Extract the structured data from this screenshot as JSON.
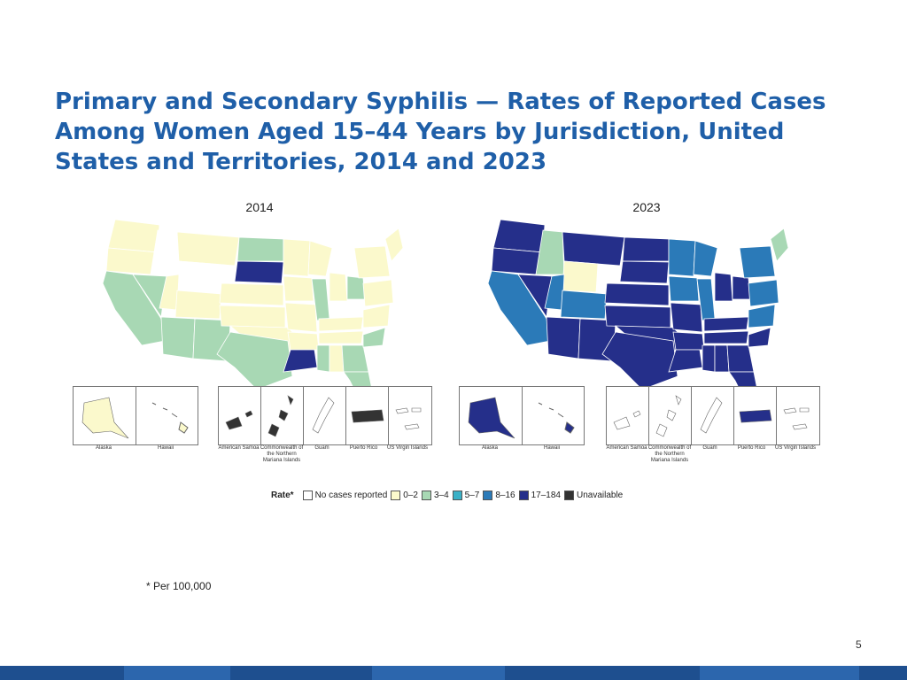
{
  "slide": {
    "title": "Primary and Secondary Syphilis — Rates of Reported Cases Among Women Aged 15–44 Years by Jurisdiction, United States and Territories, 2014 and 2023",
    "footnote": "* Per 100,000",
    "page_number": "5"
  },
  "maps": [
    {
      "year": "2014",
      "insets": [
        "Alaska",
        "Hawaii",
        "American Samoa",
        "Commonwealth of the Northern Mariana Islands",
        "Guam",
        "Puerto Rico",
        "US Virgin Islands"
      ]
    },
    {
      "year": "2023",
      "insets": [
        "Alaska",
        "Hawaii",
        "American Samoa",
        "Commonwealth of the Northern Mariana Islands",
        "Guam",
        "Puerto Rico",
        "US Virgin Islands"
      ]
    }
  ],
  "legend": {
    "title": "Rate*",
    "items": [
      {
        "label": "No cases reported",
        "color": "#ffffff"
      },
      {
        "label": "0–2",
        "color": "#fbf9cc"
      },
      {
        "label": "3–4",
        "color": "#a8d8b4"
      },
      {
        "label": "5–7",
        "color": "#3ab0c6"
      },
      {
        "label": "8–16",
        "color": "#2b7ab8"
      },
      {
        "label": "17–184",
        "color": "#252f8a"
      },
      {
        "label": "Unavailable",
        "color": "#333333"
      }
    ]
  },
  "colors": {
    "title": "#1f5fa8",
    "bar": "#1e4f8f"
  }
}
